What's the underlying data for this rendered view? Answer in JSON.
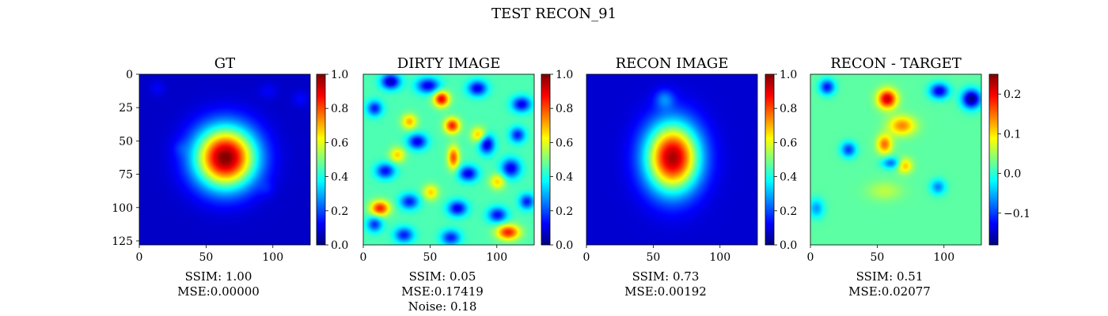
{
  "figure": {
    "title": "TEST RECON_91"
  },
  "colors": {
    "background": "#ffffff",
    "jet": [
      "#00007f",
      "#0000ff",
      "#007fff",
      "#00ffff",
      "#7fff7f",
      "#ffff00",
      "#ff7f00",
      "#ff0000",
      "#7f0000"
    ]
  },
  "chart_data": [
    {
      "type": "heatmap",
      "title": "GT",
      "metrics": [
        "SSIM: 1.00",
        "MSE:0.00000"
      ],
      "xticks": [
        0,
        50,
        100
      ],
      "yticks": [
        0,
        25,
        50,
        75,
        100,
        125
      ],
      "show_yticks": true,
      "xlim": [
        0,
        128
      ],
      "ylim": [
        128,
        0
      ],
      "colorbar": {
        "min": 0.0,
        "max": 1.0,
        "ticks": [
          "0.0",
          "0.2",
          "0.4",
          "0.6",
          "0.8",
          "1.0"
        ],
        "tick_values": [
          0.0,
          0.2,
          0.4,
          0.6,
          0.8,
          1.0
        ]
      },
      "background_level": 0.07,
      "blobs": [
        {
          "x": 64,
          "y": 62,
          "sx": 16,
          "sy": 16,
          "amp": 0.93
        },
        {
          "x": 13,
          "y": 10,
          "sx": 4,
          "sy": 4,
          "amp": 0.05
        },
        {
          "x": 96,
          "y": 12,
          "sx": 5,
          "sy": 4,
          "amp": 0.05
        },
        {
          "x": 120,
          "y": 18,
          "sx": 4,
          "sy": 4,
          "amp": 0.06
        },
        {
          "x": 30,
          "y": 55,
          "sx": 4,
          "sy": 4,
          "amp": 0.04
        },
        {
          "x": 95,
          "y": 85,
          "sx": 4,
          "sy": 4,
          "amp": 0.04
        }
      ]
    },
    {
      "type": "heatmap",
      "title": "DIRTY IMAGE",
      "metrics": [
        "SSIM: 0.05",
        "MSE:0.17419",
        "Noise: 0.18"
      ],
      "xticks": [
        0,
        50,
        100
      ],
      "yticks": [],
      "show_yticks": false,
      "xlim": [
        0,
        128
      ],
      "ylim": [
        128,
        0
      ],
      "colorbar": {
        "min": 0.0,
        "max": 1.0,
        "ticks": [
          "0.0",
          "0.2",
          "0.4",
          "0.6",
          "0.8",
          "1.0"
        ],
        "tick_values": [
          0.0,
          0.2,
          0.4,
          0.6,
          0.8,
          1.0
        ]
      },
      "background_level": 0.45,
      "blobs": [
        {
          "x": 58,
          "y": 18,
          "sx": 4,
          "sy": 4,
          "amp": 0.45
        },
        {
          "x": 66,
          "y": 38,
          "sx": 4,
          "sy": 4,
          "amp": 0.4
        },
        {
          "x": 67,
          "y": 62,
          "sx": 3,
          "sy": 6,
          "amp": 0.35
        },
        {
          "x": 12,
          "y": 100,
          "sx": 5,
          "sy": 4,
          "amp": 0.4
        },
        {
          "x": 108,
          "y": 118,
          "sx": 6,
          "sy": 4,
          "amp": 0.4
        },
        {
          "x": 34,
          "y": 35,
          "sx": 4,
          "sy": 4,
          "amp": 0.25
        },
        {
          "x": 86,
          "y": 45,
          "sx": 4,
          "sy": 4,
          "amp": 0.25
        },
        {
          "x": 25,
          "y": 60,
          "sx": 4,
          "sy": 4,
          "amp": 0.22
        },
        {
          "x": 100,
          "y": 80,
          "sx": 4,
          "sy": 4,
          "amp": 0.22
        },
        {
          "x": 50,
          "y": 88,
          "sx": 4,
          "sy": 4,
          "amp": 0.22
        },
        {
          "x": 20,
          "y": 5,
          "sx": 5,
          "sy": 4,
          "amp": -0.4
        },
        {
          "x": 48,
          "y": 8,
          "sx": 6,
          "sy": 4,
          "amp": -0.35
        },
        {
          "x": 85,
          "y": 10,
          "sx": 5,
          "sy": 4,
          "amp": -0.35
        },
        {
          "x": 118,
          "y": 22,
          "sx": 5,
          "sy": 4,
          "amp": -0.35
        },
        {
          "x": 8,
          "y": 25,
          "sx": 4,
          "sy": 4,
          "amp": -0.3
        },
        {
          "x": 40,
          "y": 50,
          "sx": 5,
          "sy": 4,
          "amp": -0.35
        },
        {
          "x": 92,
          "y": 52,
          "sx": 4,
          "sy": 5,
          "amp": -0.38
        },
        {
          "x": 115,
          "y": 45,
          "sx": 4,
          "sy": 4,
          "amp": -0.3
        },
        {
          "x": 16,
          "y": 72,
          "sx": 5,
          "sy": 4,
          "amp": -0.32
        },
        {
          "x": 78,
          "y": 74,
          "sx": 5,
          "sy": 4,
          "amp": -0.35
        },
        {
          "x": 110,
          "y": 70,
          "sx": 5,
          "sy": 5,
          "amp": -0.35
        },
        {
          "x": 34,
          "y": 95,
          "sx": 5,
          "sy": 4,
          "amp": -0.3
        },
        {
          "x": 70,
          "y": 100,
          "sx": 5,
          "sy": 4,
          "amp": -0.35
        },
        {
          "x": 100,
          "y": 105,
          "sx": 5,
          "sy": 4,
          "amp": -0.32
        },
        {
          "x": 30,
          "y": 120,
          "sx": 5,
          "sy": 4,
          "amp": -0.3
        },
        {
          "x": 65,
          "y": 122,
          "sx": 5,
          "sy": 4,
          "amp": -0.3
        },
        {
          "x": 122,
          "y": 95,
          "sx": 4,
          "sy": 4,
          "amp": -0.3
        },
        {
          "x": 8,
          "y": 112,
          "sx": 4,
          "sy": 4,
          "amp": -0.28
        }
      ]
    },
    {
      "type": "heatmap",
      "title": "RECON IMAGE",
      "metrics": [
        "SSIM: 0.73",
        "MSE:0.00192"
      ],
      "xticks": [
        0,
        50,
        100
      ],
      "yticks": [],
      "show_yticks": false,
      "xlim": [
        0,
        128
      ],
      "ylim": [
        128,
        0
      ],
      "colorbar": {
        "min": 0.0,
        "max": 1.0,
        "ticks": [
          "0.0",
          "0.2",
          "0.4",
          "0.6",
          "0.8",
          "1.0"
        ],
        "tick_values": [
          0.0,
          0.2,
          0.4,
          0.6,
          0.8,
          1.0
        ]
      },
      "background_level": 0.08,
      "blobs": [
        {
          "x": 64,
          "y": 62,
          "sx": 14,
          "sy": 18,
          "amp": 0.88
        },
        {
          "x": 58,
          "y": 18,
          "sx": 5,
          "sy": 5,
          "amp": 0.15
        }
      ]
    },
    {
      "type": "heatmap",
      "title": "RECON - TARGET",
      "metrics": [
        "SSIM: 0.51",
        "MSE:0.02077"
      ],
      "xticks": [
        0,
        50,
        100
      ],
      "yticks": [],
      "show_yticks": false,
      "xlim": [
        0,
        128
      ],
      "ylim": [
        128,
        0
      ],
      "colorbar": {
        "min": -0.18,
        "max": 0.25,
        "ticks": [
          "0.2",
          "0.1",
          "0.0",
          "−0.1"
        ],
        "tick_values": [
          0.2,
          0.1,
          0.0,
          -0.1
        ]
      },
      "background_level": 0.02,
      "blobs": [
        {
          "x": 57,
          "y": 18,
          "sx": 5,
          "sy": 5,
          "amp": 0.2
        },
        {
          "x": 68,
          "y": 38,
          "sx": 7,
          "sy": 5,
          "amp": 0.12
        },
        {
          "x": 55,
          "y": 52,
          "sx": 4,
          "sy": 5,
          "amp": 0.13
        },
        {
          "x": 70,
          "y": 68,
          "sx": 4,
          "sy": 4,
          "amp": 0.1
        },
        {
          "x": 55,
          "y": 87,
          "sx": 9,
          "sy": 5,
          "amp": 0.04
        },
        {
          "x": 12,
          "y": 9,
          "sx": 4,
          "sy": 4,
          "amp": -0.14
        },
        {
          "x": 96,
          "y": 12,
          "sx": 5,
          "sy": 4,
          "amp": -0.16
        },
        {
          "x": 120,
          "y": 18,
          "sx": 5,
          "sy": 5,
          "amp": -0.2
        },
        {
          "x": 28,
          "y": 56,
          "sx": 4,
          "sy": 4,
          "amp": -0.12
        },
        {
          "x": 60,
          "y": 66,
          "sx": 5,
          "sy": 3,
          "amp": -0.1
        },
        {
          "x": 95,
          "y": 84,
          "sx": 4,
          "sy": 4,
          "amp": -0.09
        },
        {
          "x": 4,
          "y": 100,
          "sx": 4,
          "sy": 5,
          "amp": -0.08
        }
      ]
    }
  ]
}
